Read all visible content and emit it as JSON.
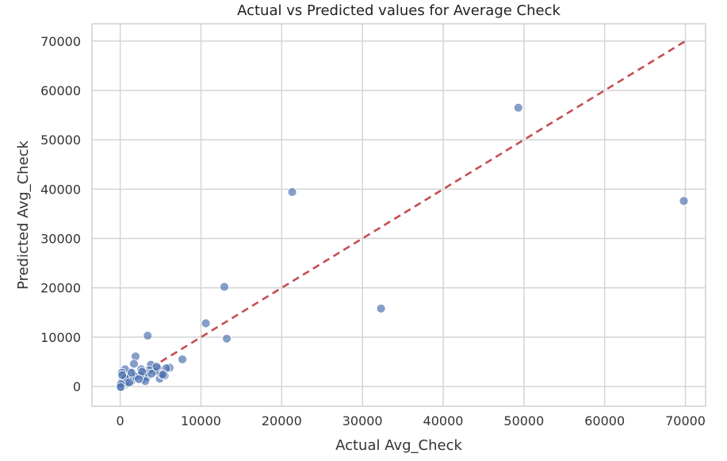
{
  "chart_data": {
    "type": "scatter",
    "title": "Actual vs Predicted values for Average Check",
    "xlabel": "Actual Avg_Check",
    "ylabel": "Predicted Avg_Check",
    "xlim": [
      -3500,
      72500
    ],
    "ylim": [
      -4000,
      73500
    ],
    "xticks": [
      0,
      10000,
      20000,
      30000,
      40000,
      50000,
      60000,
      70000
    ],
    "xtick_labels": [
      "0",
      "10000",
      "20000",
      "30000",
      "40000",
      "50000",
      "60000",
      "70000"
    ],
    "yticks": [
      0,
      10000,
      20000,
      30000,
      40000,
      50000,
      60000,
      70000
    ],
    "ytick_labels": [
      "0",
      "10000",
      "20000",
      "30000",
      "40000",
      "50000",
      "60000",
      "70000"
    ],
    "grid": true,
    "legend": false,
    "colors": {
      "points": "#4c72b0",
      "reference_line": "#c44e52",
      "grid": "#d4d4d4"
    },
    "reference_line": {
      "style": "dashed",
      "from": [
        0,
        0
      ],
      "to": [
        70000,
        70000
      ]
    },
    "series": [
      {
        "x": [
          49300,
          69800,
          21300,
          32300,
          12900,
          13200,
          10600,
          3400,
          7700,
          1900,
          1700,
          3800,
          6100,
          5700,
          4700,
          4900,
          5500,
          5100,
          4300,
          3600,
          3000,
          2600,
          2800,
          2200,
          2000,
          1500,
          1300,
          1200,
          900,
          700,
          600,
          500,
          300,
          200,
          100,
          150,
          400,
          3300,
          3100,
          2500,
          1800,
          1000,
          800,
          2700,
          3900,
          4500,
          5300,
          1400,
          2300,
          600,
          1100,
          250,
          80,
          50
        ],
        "y": [
          56500,
          37600,
          39400,
          15800,
          20200,
          9700,
          12800,
          10300,
          5500,
          6100,
          4600,
          4400,
          3800,
          3700,
          3600,
          1600,
          2200,
          2500,
          3100,
          3300,
          2800,
          3500,
          1500,
          2100,
          1800,
          1300,
          1000,
          2900,
          1400,
          2600,
          3500,
          300,
          1200,
          2800,
          100,
          0,
          600,
          1900,
          1100,
          2300,
          2000,
          1700,
          800,
          3000,
          2600,
          4000,
          2400,
          2800,
          1500,
          1700,
          800,
          2300,
          500,
          -100
        ]
      }
    ]
  }
}
